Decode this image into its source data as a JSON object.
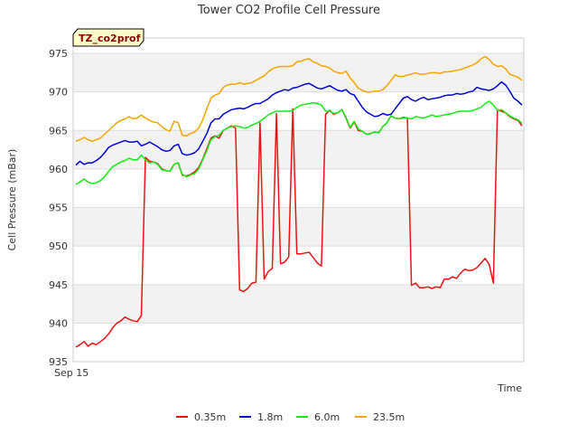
{
  "chart_data": {
    "type": "line",
    "title": "Tower CO2 Profile Cell Pressure",
    "xlabel": "Time",
    "ylabel": "Cell Pressure (mBar)",
    "badge": "TZ_co2prof",
    "x_tick_labels": [
      "Sep 15"
    ],
    "ylim": [
      935,
      977
    ],
    "yticks": [
      935,
      940,
      945,
      950,
      955,
      960,
      965,
      970,
      975
    ],
    "grid": true,
    "legend_position": "bottom",
    "n_points": 102,
    "series": [
      {
        "name": "0.35m",
        "color": "#ee1111",
        "values": [
          936.9,
          937.2,
          937.6,
          937.0,
          937.4,
          937.2,
          937.6,
          938.0,
          938.6,
          939.4,
          940.0,
          940.3,
          940.8,
          940.5,
          940.3,
          940.2,
          941.0,
          961.5,
          961.0,
          960.9,
          960.7,
          960.0,
          959.8,
          959.7,
          960.6,
          960.8,
          959.2,
          959.1,
          959.3,
          959.6,
          960.2,
          961.3,
          962.6,
          964.0,
          964.3,
          964.0,
          965.0,
          965.3,
          965.6,
          965.3,
          944.3,
          944.1,
          944.5,
          945.2,
          945.3,
          966.0,
          945.7,
          946.7,
          947.1,
          967.2,
          947.7,
          947.9,
          948.6,
          967.8,
          949.0,
          949.0,
          949.1,
          949.2,
          948.5,
          947.8,
          947.4,
          967.1,
          967.6,
          967.1,
          967.3,
          967.7,
          966.6,
          965.3,
          966.1,
          965.0,
          964.9,
          964.5,
          964.6,
          964.8,
          964.7,
          965.5,
          966.0,
          966.9,
          966.6,
          966.5,
          966.7,
          966.6,
          944.9,
          945.2,
          944.6,
          944.6,
          944.7,
          944.5,
          944.7,
          944.6,
          945.7,
          945.7,
          946.0,
          945.8,
          946.5,
          947.0,
          946.8,
          946.9,
          947.2,
          947.8,
          948.4,
          947.6
        ]
      },
      {
        "name": "1.8m",
        "color": "#0000dd",
        "values": [
          960.5,
          961.0,
          960.6,
          960.8,
          960.8,
          961.1,
          961.5,
          962.1,
          962.8,
          963.1,
          963.3,
          963.5,
          963.7,
          963.5,
          963.5,
          963.6,
          963.0,
          963.2,
          963.5,
          963.2,
          962.9,
          962.5,
          962.3,
          962.4,
          963.0,
          963.2,
          962.0,
          961.8,
          961.9,
          962.1,
          962.6,
          963.6,
          964.6,
          966.0,
          966.5,
          966.5,
          967.1,
          967.4,
          967.7,
          967.8,
          967.9,
          967.8,
          968.0,
          968.3,
          968.5,
          968.5,
          968.8,
          969.1,
          969.6,
          969.9,
          970.1,
          970.3,
          970.2,
          970.5,
          970.6,
          970.8,
          971.0,
          971.1,
          970.8,
          970.5,
          970.4,
          970.6,
          970.8,
          970.5,
          970.2,
          970.1,
          970.3,
          969.8,
          969.6,
          968.8,
          968.0,
          967.4,
          967.1,
          966.8,
          966.9,
          967.2,
          967.0,
          967.1,
          967.8,
          968.5,
          969.2,
          969.4,
          969.0,
          968.8,
          969.1,
          969.3,
          969.0,
          969.1,
          969.2,
          969.3,
          969.5,
          969.6,
          969.6,
          969.8,
          969.7,
          969.8,
          970.0,
          970.1,
          970.6,
          970.4,
          970.3,
          970.2
        ]
      },
      {
        "name": "6.0m",
        "color": "#11ee11",
        "values": [
          958.0,
          958.3,
          958.7,
          958.3,
          958.1,
          958.2,
          958.5,
          959.0,
          959.7,
          960.3,
          960.6,
          960.9,
          961.1,
          961.4,
          961.2,
          961.2,
          961.8,
          961.2,
          960.8,
          960.9,
          960.6,
          959.9,
          959.8,
          959.7,
          960.6,
          960.8,
          959.3,
          959.0,
          959.2,
          959.4,
          960.0,
          961.2,
          962.4,
          963.8,
          964.2,
          964.4,
          965.0,
          965.3,
          965.5,
          965.6,
          965.5,
          965.3,
          965.4,
          965.7,
          965.9,
          966.2,
          966.6,
          967.0,
          967.3,
          967.5,
          967.5,
          967.5,
          967.5,
          967.6,
          968.0,
          968.3,
          968.4,
          968.5,
          968.6,
          968.5,
          968.3,
          967.5,
          967.5,
          967.2,
          967.3,
          967.7,
          966.7,
          965.4,
          966.2,
          965.2,
          964.9,
          964.5,
          964.6,
          964.8,
          964.7,
          965.5,
          966.0,
          966.9,
          966.6,
          966.5,
          966.6,
          966.6,
          966.5,
          966.8,
          966.7,
          966.6,
          966.8,
          967.0,
          966.8,
          966.9,
          967.0,
          967.1,
          967.2,
          967.4,
          967.5,
          967.5,
          967.5,
          967.6,
          967.8,
          968.0,
          968.5,
          968.8
        ]
      },
      {
        "name": "23.5m",
        "color": "#f5a500",
        "values": [
          963.6,
          963.8,
          964.1,
          963.8,
          963.6,
          963.8,
          964.0,
          964.5,
          965.0,
          965.5,
          966.0,
          966.3,
          966.5,
          966.8,
          966.5,
          966.6,
          967.0,
          966.6,
          966.3,
          966.1,
          966.0,
          965.5,
          965.1,
          964.9,
          966.2,
          966.0,
          964.4,
          964.3,
          964.6,
          964.8,
          965.3,
          966.4,
          967.8,
          969.2,
          969.6,
          969.8,
          970.6,
          970.9,
          971.0,
          971.0,
          971.2,
          971.0,
          971.1,
          971.2,
          971.5,
          971.8,
          972.1,
          972.6,
          973.0,
          973.2,
          973.3,
          973.3,
          973.3,
          973.4,
          973.9,
          974.0,
          974.2,
          974.3,
          973.9,
          973.7,
          973.4,
          973.3,
          973.1,
          972.7,
          972.5,
          972.4,
          972.7,
          971.8,
          971.2,
          970.5,
          970.2,
          970.0,
          970.0,
          970.1,
          970.1,
          970.3,
          970.8,
          971.5,
          972.2,
          972.0,
          972.0,
          972.2,
          972.3,
          972.5,
          972.3,
          972.3,
          972.4,
          972.5,
          972.5,
          972.4,
          972.6,
          972.6,
          972.7,
          972.8,
          972.9,
          973.1,
          973.3,
          973.5,
          973.8,
          974.3,
          974.6,
          974.2
        ]
      }
    ],
    "tail": {
      "0.35m": [
        945.2,
        967.7,
        967.5,
        967.3,
        966.8,
        966.5,
        966.3,
        965.6
      ],
      "1.8m": [
        970.4,
        970.8,
        971.3,
        970.9,
        970.1,
        969.2,
        968.8,
        968.3
      ],
      "6.0m": [
        968.3,
        967.6,
        967.7,
        967.3,
        966.9,
        966.6,
        966.4,
        965.9
      ],
      "23.5m": [
        973.6,
        973.3,
        973.4,
        973.0,
        972.3,
        972.1,
        971.9,
        971.5
      ]
    }
  }
}
